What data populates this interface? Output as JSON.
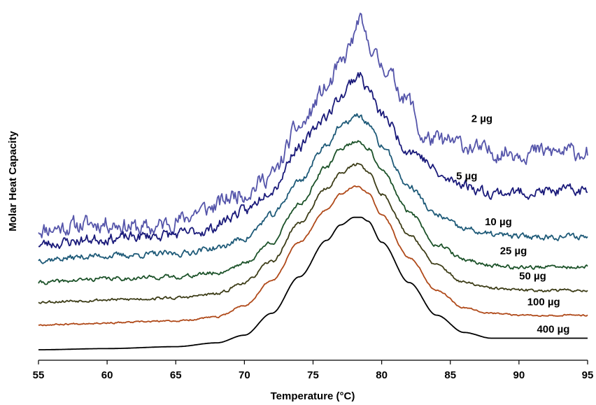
{
  "chart_data": {
    "type": "line",
    "title": "",
    "xlabel": "Temperature (°C)",
    "ylabel": "Molar Heat Capacity",
    "xlim": [
      55,
      95
    ],
    "x_ticks": [
      55,
      60,
      65,
      70,
      75,
      80,
      85,
      90,
      95
    ],
    "y_ticks_shown": false,
    "grid": false,
    "legend": "none",
    "y_units": "arbitrary (vertically offset traces)",
    "series": [
      {
        "name": "2 µg",
        "label": "2 µg",
        "color": "#5555aa",
        "x": [
          55,
          60,
          63,
          65,
          67,
          70,
          72,
          74,
          76,
          77,
          78,
          78.3,
          79,
          80,
          82,
          83,
          85,
          88,
          90,
          95
        ],
        "y": [
          31.5,
          33,
          31.5,
          33.5,
          36.5,
          41,
          45.5,
          58,
          68,
          74,
          81,
          86,
          80,
          74,
          65,
          55,
          54,
          51.5,
          51.5,
          51.5
        ],
        "noise": 1.3,
        "seed": 11
      },
      {
        "name": "5 µg",
        "label": "5 µg",
        "color": "#1a1a7a",
        "x": [
          55,
          60,
          65,
          67,
          70,
          72,
          74,
          76,
          77,
          78,
          78.3,
          79,
          80,
          82,
          85,
          88,
          90,
          95
        ],
        "y": [
          27.5,
          29,
          30,
          31,
          36,
          42,
          53,
          61,
          66,
          70.5,
          72,
          68,
          61,
          52,
          44,
          41,
          41,
          41.5
        ],
        "noise": 0.8,
        "seed": 23
      },
      {
        "name": "10 µg",
        "label": "10 µg",
        "color": "#1e5a78",
        "x": [
          55,
          60,
          65,
          68,
          70,
          72,
          74,
          76,
          77,
          78,
          78.3,
          79,
          80,
          82,
          84,
          86,
          88,
          90,
          95
        ],
        "y": [
          23.5,
          24.5,
          25,
          26.5,
          29,
          35,
          44,
          53.5,
          58,
          60.5,
          61,
          59,
          53,
          42.5,
          35,
          31.5,
          30,
          29.5,
          29.5
        ],
        "noise": 0.45,
        "seed": 37
      },
      {
        "name": "25 µg",
        "label": "25 µg",
        "color": "#1c5229",
        "x": [
          55,
          60,
          65,
          68,
          70,
          72,
          74,
          76,
          77,
          78,
          78.3,
          79,
          80,
          82,
          84,
          86,
          88,
          90,
          95
        ],
        "y": [
          17.5,
          18.5,
          19,
          20,
          22.5,
          28,
          38,
          47.5,
          52.5,
          54,
          54.5,
          52.5,
          46.5,
          36,
          27.5,
          23.5,
          22,
          21.5,
          21.5
        ],
        "noise": 0.3,
        "seed": 41
      },
      {
        "name": "50 µg",
        "label": "50 µg",
        "color": "#3d3d18",
        "x": [
          55,
          60,
          65,
          68,
          70,
          72,
          74,
          76,
          77,
          78,
          78.3,
          79,
          80,
          82,
          84,
          86,
          88,
          90,
          95
        ],
        "y": [
          12.5,
          13,
          13.5,
          14.5,
          17.5,
          23,
          33,
          42,
          46,
          48,
          48.5,
          46.5,
          40.5,
          30,
          22,
          17.5,
          16,
          15.5,
          15.5
        ],
        "noise": 0.22,
        "seed": 53
      },
      {
        "name": "100 µg",
        "label": "100 µg",
        "color": "#b04a1a",
        "x": [
          55,
          60,
          65,
          68,
          70,
          72,
          74,
          76,
          77,
          78,
          78.3,
          79,
          80,
          82,
          84,
          86,
          88,
          90,
          95
        ],
        "y": [
          6.5,
          7,
          7.5,
          8.5,
          11.5,
          18,
          28,
          36.5,
          40.5,
          42.5,
          42.5,
          41,
          35,
          24,
          15.5,
          11,
          9.5,
          9,
          9
        ],
        "noise": 0.12,
        "seed": 67
      },
      {
        "name": "400 µg",
        "label": "400 µg",
        "color": "#000000",
        "x": [
          55,
          60,
          65,
          68,
          70,
          72,
          74,
          76,
          77,
          78,
          78.5,
          79,
          80,
          82,
          84,
          86,
          88,
          90,
          95
        ],
        "y": [
          0,
          0.3,
          0.8,
          1.8,
          3.8,
          9.5,
          19,
          28.5,
          32.5,
          34.5,
          34.5,
          33.5,
          28,
          17.5,
          9,
          4.5,
          3,
          3,
          3
        ],
        "noise": 0,
        "seed": 71
      }
    ],
    "series_label_positions": [
      {
        "series": "2 µg",
        "x": 87.3,
        "y": 60.2
      },
      {
        "series": "5 µg",
        "x": 86.2,
        "y": 45.3
      },
      {
        "series": "10 µg",
        "x": 88.5,
        "y": 33.3
      },
      {
        "series": "25 µg",
        "x": 89.6,
        "y": 25.8
      },
      {
        "series": "50 µg",
        "x": 91.0,
        "y": 19.2
      },
      {
        "series": "100 µg",
        "x": 91.8,
        "y": 12.5
      },
      {
        "series": "400 µg",
        "x": 92.5,
        "y": 5.4
      }
    ]
  }
}
